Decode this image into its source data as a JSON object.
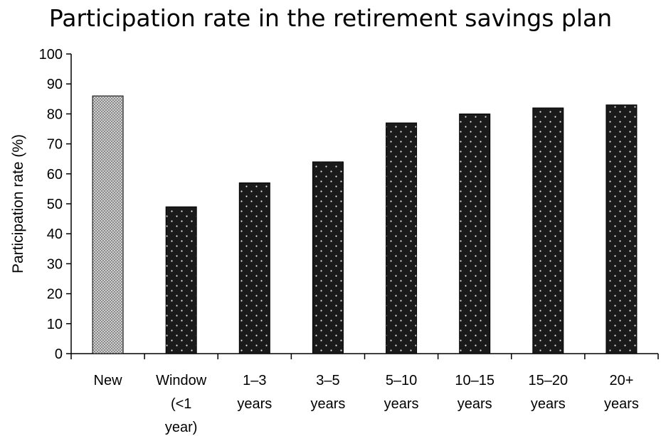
{
  "chart_data": {
    "type": "bar",
    "title": "Participation rate in the retirement savings plan",
    "xlabel": "",
    "ylabel": "Participation rate (%)",
    "ylim": [
      0,
      100
    ],
    "yticks": [
      0,
      10,
      20,
      30,
      40,
      50,
      60,
      70,
      80,
      90,
      100
    ],
    "grid": false,
    "categories": [
      [
        "New"
      ],
      [
        "Window",
        "(<1",
        "year)"
      ],
      [
        "1–3",
        "years"
      ],
      [
        "3–5",
        "years"
      ],
      [
        "5–10",
        "years"
      ],
      [
        "10–15",
        "years"
      ],
      [
        "15–20",
        "years"
      ],
      [
        "20+",
        "years"
      ]
    ],
    "values": [
      86,
      49,
      57,
      64,
      77,
      80,
      82,
      83
    ],
    "bar_styles": [
      "checkered-gray",
      "dotted-black",
      "dotted-black",
      "dotted-black",
      "dotted-black",
      "dotted-black",
      "dotted-black",
      "dotted-black"
    ],
    "colors": {
      "dark_bar": "#1a1a1a",
      "light_bar": "#9a9a9a",
      "axis": "#000000"
    }
  }
}
